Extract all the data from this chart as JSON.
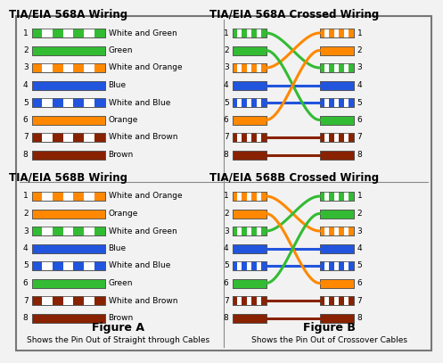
{
  "bg_color": "#f2f2f2",
  "title_fontsize": 8.5,
  "label_fontsize": 6.5,
  "pin_fontsize": 6.5,
  "figure_fontsize": 9,
  "caption_fontsize": 6.5,
  "568A_wires": [
    {
      "label": "White and Green",
      "solid": "#33bb33",
      "stripe": true
    },
    {
      "label": "Green",
      "solid": "#33bb33",
      "stripe": false
    },
    {
      "label": "White and Orange",
      "solid": "#ff8800",
      "stripe": true
    },
    {
      "label": "Blue",
      "solid": "#2255dd",
      "stripe": false
    },
    {
      "label": "White and Blue",
      "solid": "#2255dd",
      "stripe": true
    },
    {
      "label": "Orange",
      "solid": "#ff8800",
      "stripe": false
    },
    {
      "label": "White and Brown",
      "solid": "#882200",
      "stripe": true
    },
    {
      "label": "Brown",
      "solid": "#882200",
      "stripe": false
    }
  ],
  "568B_wires": [
    {
      "label": "White and Orange",
      "solid": "#ff8800",
      "stripe": true
    },
    {
      "label": "Orange",
      "solid": "#ff8800",
      "stripe": false
    },
    {
      "label": "White and Green",
      "solid": "#33bb33",
      "stripe": true
    },
    {
      "label": "Blue",
      "solid": "#2255dd",
      "stripe": false
    },
    {
      "label": "White and Blue",
      "solid": "#2255dd",
      "stripe": true
    },
    {
      "label": "Green",
      "solid": "#33bb33",
      "stripe": false
    },
    {
      "label": "White and Brown",
      "solid": "#882200",
      "stripe": true
    },
    {
      "label": "Brown",
      "solid": "#882200",
      "stripe": false
    }
  ],
  "titles": {
    "tl": "TIA/EIA 568A Wiring",
    "tr": "TIA/EIA 568A Crossed Wiring",
    "bl": "TIA/EIA 568B Wiring",
    "br": "TIA/EIA 568B Crossed Wiring"
  },
  "fig_a_label": "Figure A",
  "fig_b_label": "Figure B",
  "fig_a_caption": "Shows the Pin Out of Straight through Cables",
  "fig_b_caption": "Shows the Pin Out of Crossover Cables"
}
